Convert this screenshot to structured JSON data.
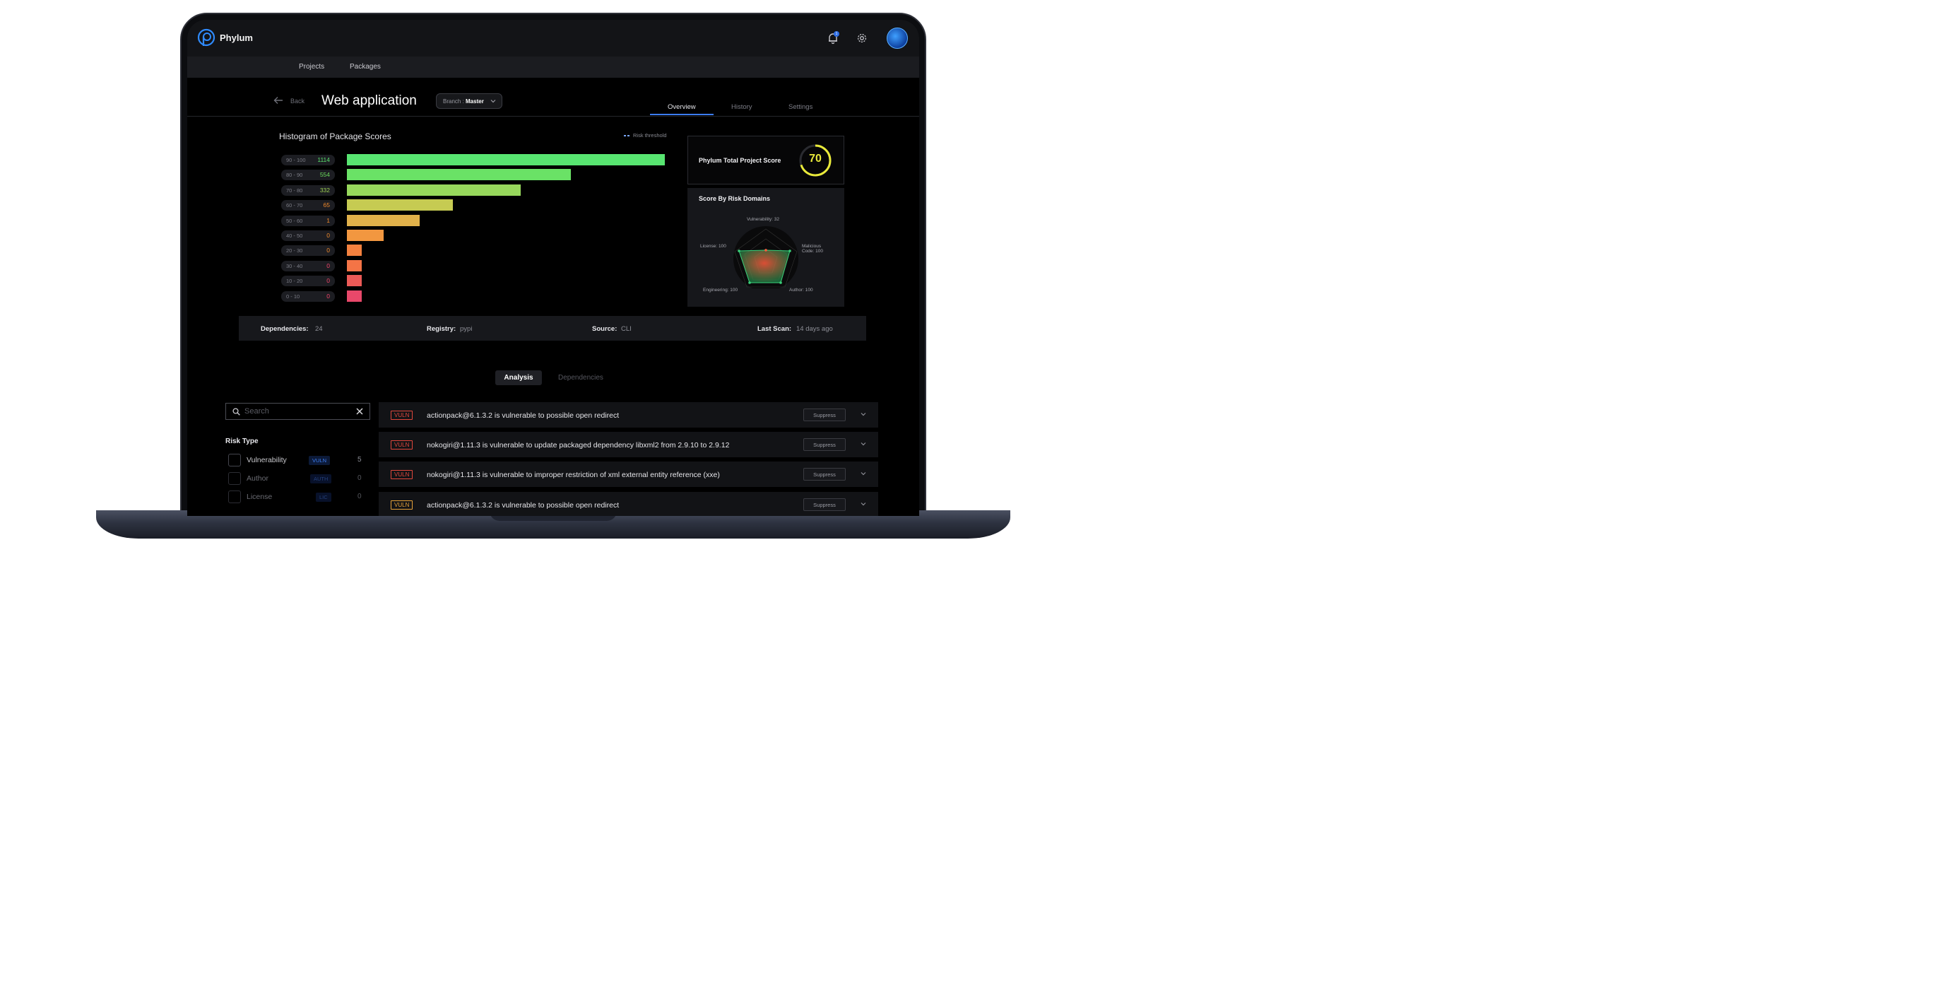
{
  "app": {
    "brand": "Phylum",
    "notification_count": "1"
  },
  "nav": {
    "items": [
      "Projects",
      "Packages"
    ]
  },
  "header": {
    "back_label": "Back",
    "title": "Web application",
    "branch_prefix": "Branch : ",
    "branch_value": "Master",
    "tabs": [
      "Overview",
      "History",
      "Settings"
    ],
    "active_tab": "Overview"
  },
  "histogram": {
    "title": "Histogram of Package Scores",
    "legend": "Risk threshold"
  },
  "chart_data": {
    "type": "bar",
    "orientation": "horizontal",
    "title": "Histogram of Package Scores",
    "categories": [
      "90 - 100",
      "80 - 90",
      "70 - 80",
      "60 - 70",
      "50 - 60",
      "40 - 50",
      "20 - 30",
      "30 - 40",
      "10 - 20",
      "0 - 10"
    ],
    "values": [
      1114,
      554,
      332,
      65,
      1,
      0,
      0,
      0,
      0,
      0
    ],
    "bar_colors": [
      "#58e571",
      "#6ae266",
      "#97d85c",
      "#c6cb52",
      "#e1b14a",
      "#f29740",
      "#f4813f",
      "#f47446",
      "#ec5a57",
      "#e8486a"
    ],
    "count_colors": [
      "#59e06d",
      "#6ad95c",
      "#9ed253",
      "#f08a2c",
      "#f08a2c",
      "#f08a2c",
      "#f08a2c",
      "#f0456a",
      "#f0456a",
      "#f0456a"
    ]
  },
  "project_score": {
    "label": "Phylum Total Project Score",
    "value": "70",
    "fraction": 0.7,
    "color": "#e9ea3a"
  },
  "risk_domains": {
    "title": "Score By Risk Domains",
    "labels": {
      "vulnerability": "Vulnerability: 32",
      "malicious_1": "Malicious",
      "malicious_2": "Code: 100",
      "author": "Author: 100",
      "engineering": "Engineering: 100",
      "license": "License: 100"
    }
  },
  "meta": {
    "dependencies_key": "Dependencies:",
    "dependencies_val": "24",
    "registry_key": "Registry:",
    "registry_val": "pypi",
    "source_key": "Source:",
    "source_val": "CLI",
    "last_scan_key": "Last Scan:",
    "last_scan_val": "14 days ago"
  },
  "segments": {
    "analysis": "Analysis",
    "dependencies": "Dependencies"
  },
  "search": {
    "placeholder": "Search",
    "value": ""
  },
  "filters": {
    "title": "Risk Type",
    "items": [
      {
        "label": "Vulnerability",
        "badge": "VULN",
        "count": "5"
      },
      {
        "label": "Author",
        "badge": "AUTH",
        "count": "0"
      },
      {
        "label": "License",
        "badge": "LIC",
        "count": "0"
      }
    ]
  },
  "issues": [
    {
      "badge": "VULN",
      "text": "actionpack@6.1.3.2 is vulnerable to possible open redirect",
      "action": "Suppress",
      "color": "#e2483d"
    },
    {
      "badge": "VULN",
      "text": "nokogiri@1.11.3 is vulnerable to update packaged dependency libxml2 from 2.9.10 to 2.9.12",
      "action": "Suppress",
      "color": "#e2483d"
    },
    {
      "badge": "VULN",
      "text": "nokogiri@1.11.3 is vulnerable to improper restriction of xml external entity reference (xxe)",
      "action": "Suppress",
      "color": "#e2483d"
    },
    {
      "badge": "VULN",
      "text": "actionpack@6.1.3.2 is vulnerable to possible open redirect",
      "action": "Suppress",
      "color": "#e8a23a"
    }
  ]
}
